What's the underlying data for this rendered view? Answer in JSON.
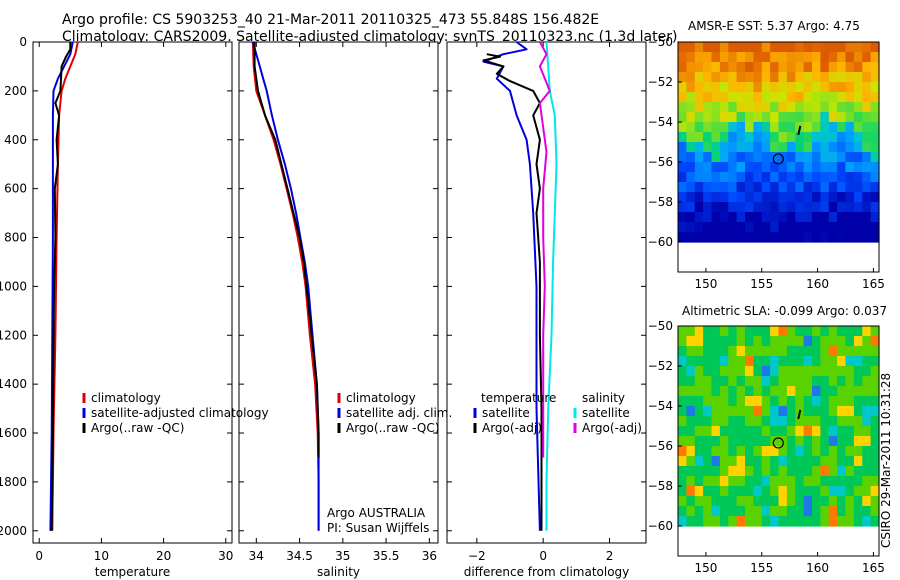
{
  "header": {
    "line1": "Argo profile: CS 5903253_40 21-Mar-2011 20110325_473 55.848S 156.482E",
    "line2": "Climatology: CARS2009. Satellite-adjusted climatology: synTS_20110323.nc (1.3d later)"
  },
  "credit": "CSIRO 29-Mar-2011 10:31:28",
  "colors": {
    "red": "#e00000",
    "blue": "#0000dd",
    "black": "#000000",
    "cyan": "#00e8e8",
    "magenta": "#e000e0"
  },
  "chart_data": [
    {
      "type": "line",
      "title": "",
      "xlabel": "temperature",
      "ylabel": "",
      "xlim": [
        -1,
        31
      ],
      "ylim": [
        2050,
        0
      ],
      "xticks": [
        0,
        10,
        20,
        30
      ],
      "yticks": [
        0,
        200,
        400,
        600,
        800,
        1000,
        1200,
        1400,
        1600,
        1800,
        2000
      ],
      "legend": {
        "placement": "lower-right",
        "entries": [
          "climatology",
          "satellite-adjusted climatology",
          "Argo(..raw -QC)"
        ]
      },
      "series": [
        {
          "name": "climatology",
          "color": "red",
          "points": [
            [
              6.2,
              0
            ],
            [
              5.8,
              50
            ],
            [
              5.0,
              100
            ],
            [
              4.2,
              150
            ],
            [
              3.6,
              200
            ],
            [
              3.2,
              300
            ],
            [
              3.0,
              500
            ],
            [
              2.8,
              800
            ],
            [
              2.6,
              1200
            ],
            [
              2.3,
              1600
            ],
            [
              2.1,
              2000
            ]
          ]
        },
        {
          "name": "satellite-adjusted climatology",
          "color": "blue",
          "points": [
            [
              5.4,
              0
            ],
            [
              5.0,
              50
            ],
            [
              4.0,
              100
            ],
            [
              3.0,
              150
            ],
            [
              2.3,
              200
            ],
            [
              2.2,
              300
            ],
            [
              2.2,
              500
            ],
            [
              2.2,
              800
            ],
            [
              2.1,
              1200
            ],
            [
              2.0,
              1600
            ],
            [
              1.8,
              2000
            ]
          ]
        },
        {
          "name": "Argo(..raw -QC)",
          "color": "black",
          "points": [
            [
              5.0,
              0
            ],
            [
              5.0,
              30
            ],
            [
              4.3,
              60
            ],
            [
              3.6,
              100
            ],
            [
              3.4,
              200
            ],
            [
              2.6,
              250
            ],
            [
              3.2,
              300
            ],
            [
              2.8,
              400
            ],
            [
              3.0,
              500
            ],
            [
              2.5,
              600
            ],
            [
              2.6,
              800
            ],
            [
              2.4,
              1000
            ],
            [
              2.3,
              1200
            ],
            [
              2.2,
              1600
            ],
            [
              2.0,
              2000
            ]
          ]
        }
      ]
    },
    {
      "type": "line",
      "title": "",
      "xlabel": "salinity",
      "ylabel": "",
      "xlim": [
        33.8,
        36.1
      ],
      "ylim": [
        2050,
        0
      ],
      "xticks": [
        34,
        34.5,
        35,
        35.5,
        36
      ],
      "legend": {
        "placement": "lower-right",
        "entries": [
          "climatology",
          "satellite adj. clim.",
          "Argo(..raw -QC)"
        ]
      },
      "annotations": [
        "Argo AUSTRALIA",
        "PI: Susan Wijffels"
      ],
      "series": [
        {
          "name": "climatology",
          "color": "red",
          "points": [
            [
              33.96,
              0
            ],
            [
              33.97,
              100
            ],
            [
              34.0,
              200
            ],
            [
              34.1,
              300
            ],
            [
              34.2,
              400
            ],
            [
              34.28,
              500
            ],
            [
              34.35,
              600
            ],
            [
              34.42,
              700
            ],
            [
              34.48,
              800
            ],
            [
              34.53,
              900
            ],
            [
              34.57,
              1000
            ],
            [
              34.62,
              1200
            ],
            [
              34.68,
              1400
            ],
            [
              34.71,
              1600
            ],
            [
              34.72,
              1800
            ],
            [
              34.72,
              2000
            ]
          ]
        },
        {
          "name": "satellite adj. clim.",
          "color": "blue",
          "points": [
            [
              33.96,
              0
            ],
            [
              34.0,
              50
            ],
            [
              34.04,
              100
            ],
            [
              34.08,
              150
            ],
            [
              34.12,
              200
            ],
            [
              34.18,
              300
            ],
            [
              34.25,
              400
            ],
            [
              34.33,
              500
            ],
            [
              34.4,
              600
            ],
            [
              34.46,
              700
            ],
            [
              34.51,
              800
            ],
            [
              34.56,
              900
            ],
            [
              34.6,
              1000
            ],
            [
              34.65,
              1200
            ],
            [
              34.7,
              1400
            ],
            [
              34.72,
              1600
            ],
            [
              34.72,
              1800
            ],
            [
              34.72,
              2000
            ]
          ]
        },
        {
          "name": "Argo(..raw -QC)",
          "color": "black",
          "points": [
            [
              33.98,
              0
            ],
            [
              33.98,
              100
            ],
            [
              34.02,
              200
            ],
            [
              34.1,
              300
            ],
            [
              34.22,
              400
            ],
            [
              34.29,
              500
            ],
            [
              34.36,
              600
            ],
            [
              34.43,
              700
            ],
            [
              34.5,
              800
            ],
            [
              34.55,
              900
            ],
            [
              34.58,
              1000
            ],
            [
              34.64,
              1200
            ],
            [
              34.7,
              1400
            ],
            [
              34.72,
              1600
            ],
            [
              34.72,
              1700
            ]
          ]
        }
      ]
    },
    {
      "type": "line",
      "title": "",
      "xlabel": "difference from climatology",
      "ylabel": "",
      "xlim": [
        -2.9,
        3.1
      ],
      "ylim": [
        2050,
        0
      ],
      "xticks": [
        -2,
        0,
        2
      ],
      "legend": {
        "placement": "lower-center",
        "groups": [
          {
            "title": "temperature",
            "entries": [
              "satellite",
              "Argo(-adj)"
            ]
          },
          {
            "title": "salinity",
            "entries": [
              "satellite",
              "Argo(-adj)"
            ]
          }
        ]
      },
      "series": [
        {
          "name": "temperature satellite",
          "color": "blue",
          "points": [
            [
              -0.8,
              0
            ],
            [
              -0.5,
              30
            ],
            [
              -1.2,
              50
            ],
            [
              -1.8,
              80
            ],
            [
              -1.2,
              100
            ],
            [
              -1.4,
              150
            ],
            [
              -1.0,
              200
            ],
            [
              -0.8,
              300
            ],
            [
              -0.5,
              400
            ],
            [
              -0.4,
              500
            ],
            [
              -0.3,
              700
            ],
            [
              -0.2,
              1000
            ],
            [
              -0.2,
              1500
            ],
            [
              -0.1,
              2000
            ]
          ]
        },
        {
          "name": "temperature Argo(-adj)",
          "color": "black",
          "points": [
            [
              -1.7,
              50
            ],
            [
              -1.3,
              60
            ],
            [
              -1.8,
              75
            ],
            [
              -1.2,
              100
            ],
            [
              -1.4,
              130
            ],
            [
              -1.0,
              160
            ],
            [
              -0.3,
              200
            ],
            [
              -0.1,
              250
            ],
            [
              -0.3,
              300
            ],
            [
              -0.1,
              400
            ],
            [
              -0.2,
              500
            ],
            [
              -0.1,
              600
            ],
            [
              -0.2,
              700
            ],
            [
              -0.1,
              900
            ],
            [
              -0.1,
              1200
            ],
            [
              -0.05,
              1500
            ],
            [
              -0.05,
              2000
            ]
          ]
        },
        {
          "name": "salinity satellite",
          "color": "cyan",
          "points": [
            [
              0.1,
              0
            ],
            [
              0.15,
              100
            ],
            [
              0.2,
              200
            ],
            [
              0.35,
              300
            ],
            [
              0.4,
              500
            ],
            [
              0.35,
              700
            ],
            [
              0.3,
              900
            ],
            [
              0.25,
              1200
            ],
            [
              0.15,
              1500
            ],
            [
              0.1,
              1800
            ],
            [
              0.1,
              2000
            ]
          ]
        },
        {
          "name": "salinity Argo(-adj)",
          "color": "magenta",
          "points": [
            [
              -0.1,
              0
            ],
            [
              0.1,
              50
            ],
            [
              -0.1,
              100
            ],
            [
              0.2,
              200
            ],
            [
              -0.1,
              250
            ],
            [
              0.0,
              350
            ],
            [
              0.1,
              450
            ],
            [
              0.0,
              600
            ],
            [
              0.0,
              800
            ],
            [
              0.05,
              1000
            ],
            [
              0.0,
              1200
            ],
            [
              0.0,
              1500
            ],
            [
              0.0,
              1700
            ]
          ]
        }
      ]
    },
    {
      "type": "heatmap",
      "title": "AMSR-E SST: 5.37 Argo: 4.75",
      "xlim": [
        147.5,
        165.5
      ],
      "ylim": [
        -61.5,
        -50
      ],
      "data_extent_lat": [
        -60,
        -50
      ],
      "xticks": [
        150,
        155,
        160,
        165
      ],
      "yticks": [
        -50,
        -52,
        -54,
        -56,
        -58,
        -60
      ],
      "marker": {
        "lon": 156.482,
        "lat": -55.848
      }
    },
    {
      "type": "heatmap",
      "title": "Altimetric SLA: -0.099 Argo: 0.037",
      "xlim": [
        147.5,
        165.5
      ],
      "ylim": [
        -61.5,
        -50
      ],
      "data_extent_lat": [
        -60,
        -50
      ],
      "xticks": [
        150,
        155,
        160,
        165
      ],
      "yticks": [
        -50,
        -52,
        -54,
        -56,
        -58,
        -60
      ],
      "marker": {
        "lon": 156.482,
        "lat": -55.848
      }
    }
  ]
}
